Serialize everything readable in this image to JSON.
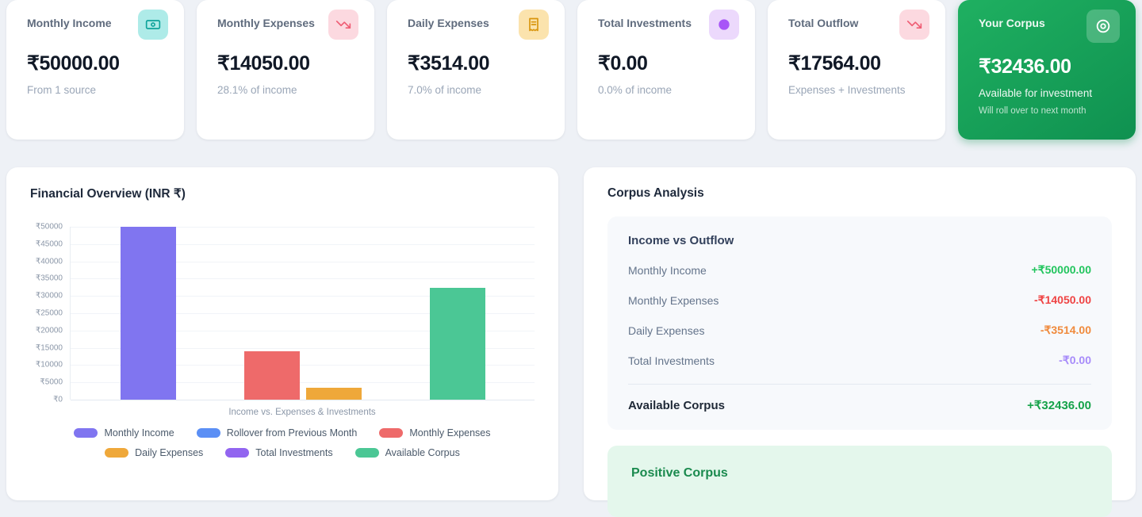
{
  "stat_cards": [
    {
      "title": "Monthly Income",
      "value": "₹50000.00",
      "subtitle": "From 1 source",
      "icon": "banknote-icon",
      "icon_bg": "#aeebe8",
      "icon_color": "#0fa49b"
    },
    {
      "title": "Monthly Expenses",
      "value": "₹14050.00",
      "subtitle": "28.1% of income",
      "icon": "trending-down-icon",
      "icon_bg": "#fcd9e0",
      "icon_color": "#ef5d74"
    },
    {
      "title": "Daily Expenses",
      "value": "₹3514.00",
      "subtitle": "7.0% of income",
      "icon": "receipt-icon",
      "icon_bg": "#fbe3ad",
      "icon_color": "#d9950d"
    },
    {
      "title": "Total Investments",
      "value": "₹0.00",
      "subtitle": "0.0% of income",
      "icon": "coin-icon",
      "icon_bg": "#ecd9fc",
      "icon_color": "#a855f7"
    },
    {
      "title": "Total Outflow",
      "value": "₹17564.00",
      "subtitle": "Expenses + Investments",
      "icon": "trending-down-icon",
      "icon_bg": "#fcd9e0",
      "icon_color": "#ef5d74"
    }
  ],
  "corpus_card": {
    "title": "Your Corpus",
    "value": "₹32436.00",
    "subtitle": "Available for investment",
    "note": "Will roll over to next month",
    "icon": "savings-target-icon"
  },
  "chart_panel": {
    "title": "Financial Overview (INR ₹)"
  },
  "chart_data": {
    "type": "bar",
    "title": "Financial Overview (INR ₹)",
    "categories": [
      "Income vs. Expenses & Investments"
    ],
    "series": [
      {
        "name": "Monthly Income",
        "values": [
          50000
        ],
        "color": "#8075f0"
      },
      {
        "name": "Rollover from Previous Month",
        "values": [
          0
        ],
        "color": "#5b8ff5"
      },
      {
        "name": "Monthly Expenses",
        "values": [
          14050
        ],
        "color": "#ee6a6a"
      },
      {
        "name": "Daily Expenses",
        "values": [
          3514
        ],
        "color": "#efa83a"
      },
      {
        "name": "Total Investments",
        "values": [
          0
        ],
        "color": "#9265f0"
      },
      {
        "name": "Available Corpus",
        "values": [
          32436
        ],
        "color": "#4bc795"
      }
    ],
    "ylim": [
      0,
      50000
    ],
    "ytick_step": 5000,
    "ytick_prefix": "₹",
    "grid": true,
    "legend_position": "bottom"
  },
  "analysis_panel": {
    "title": "Corpus Analysis",
    "summary": {
      "heading": "Income vs Outflow",
      "rows": [
        {
          "label": "Monthly Income",
          "value": "+₹50000.00",
          "color": "#22c55e"
        },
        {
          "label": "Monthly Expenses",
          "value": "-₹14050.00",
          "color": "#ef4444"
        },
        {
          "label": "Daily Expenses",
          "value": "-₹3514.00",
          "color": "#f08a3c"
        },
        {
          "label": "Total Investments",
          "value": "-₹0.00",
          "color": "#a78bfa"
        }
      ],
      "total": {
        "label": "Available Corpus",
        "value": "+₹32436.00",
        "color": "#16a34a"
      }
    },
    "status_box": {
      "heading": "Positive Corpus",
      "text_color": "#1a8a4e",
      "bg": "#e4f7ec"
    }
  }
}
